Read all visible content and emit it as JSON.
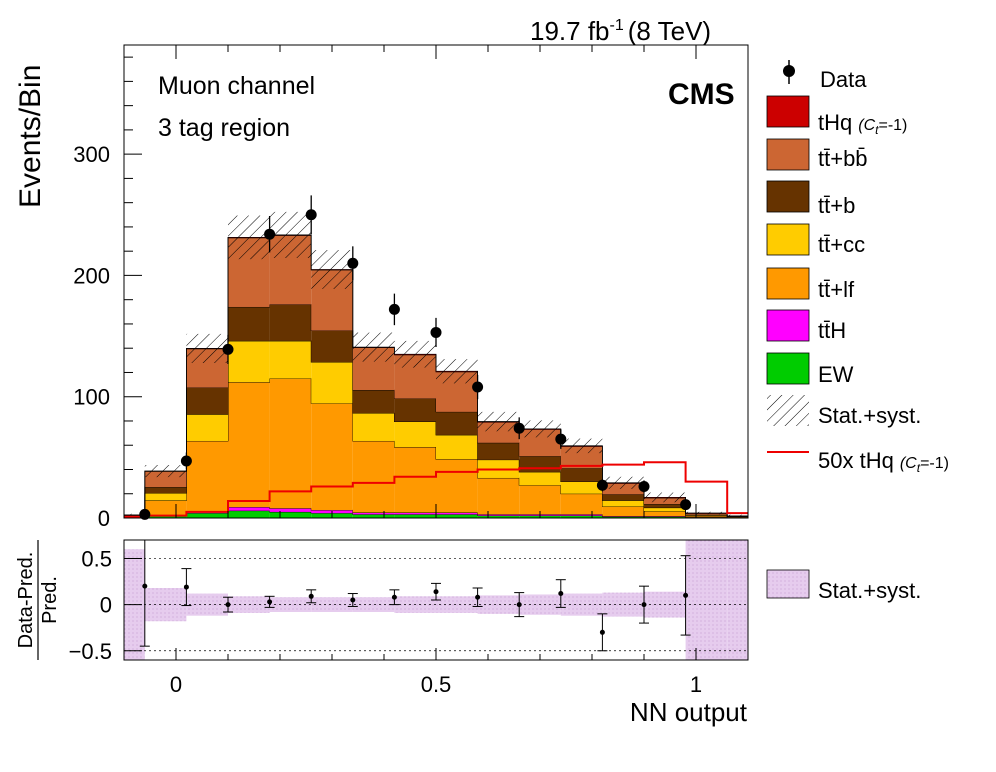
{
  "header": {
    "lumi_value": "19.7 fb",
    "lumi_exp": "-1",
    "energy": "(8 TeV)",
    "experiment": "CMS"
  },
  "annotations": {
    "channel": "Muon channel",
    "region": "3 tag region"
  },
  "legend": {
    "data": "Data",
    "thq_main": "tHq",
    "thq_ct": "(C",
    "thq_ct_sub": "t",
    "thq_ct_val": "=-1)",
    "ttbb": "tt̄+bb̄",
    "ttb": "tt̄+b",
    "ttcc": "tt̄+cc",
    "ttlf": "tt̄+lf",
    "tth": "tt̄H",
    "ew": "EW",
    "unc": "Stat.+syst.",
    "thq50_main": "50x tHq",
    "ratio_unc": "Stat.+syst."
  },
  "colors": {
    "thq": "#cc0000",
    "ttbb": "#cc6633",
    "ttb": "#663300",
    "ttcc": "#ffcc00",
    "ttlf": "#ff9900",
    "tth": "#ff00ff",
    "ew": "#00cc00",
    "signal_line": "#ee0000",
    "ratio_band": "#e6ccee"
  },
  "chart_data": {
    "type": "bar",
    "xlabel": "NN output",
    "ylabel": "Events/Bin",
    "ratio_ylabel_num": "Data-Pred.",
    "ratio_ylabel_den": "Pred.",
    "xlim": [
      -0.1,
      1.1
    ],
    "ylim": [
      0,
      390
    ],
    "ratio_ylim": [
      -0.6,
      0.7
    ],
    "x_ticks": [
      "0",
      "0.5",
      "1"
    ],
    "y_ticks": [
      "0",
      "100",
      "200",
      "300"
    ],
    "ratio_y_ticks": [
      "0.5",
      "0",
      "−0.5"
    ],
    "bin_edges": [
      -0.14,
      -0.06,
      0.02,
      0.1,
      0.18,
      0.26,
      0.34,
      0.42,
      0.5,
      0.58,
      0.66,
      0.74,
      0.82,
      0.9,
      0.98,
      1.06,
      1.14
    ],
    "stack": [
      {
        "key": "ew",
        "values": [
          0.5,
          2,
          4,
          6,
          5,
          4,
          3,
          3,
          3,
          2,
          2,
          2,
          1,
          1,
          0.5,
          0.3
        ]
      },
      {
        "key": "tth",
        "values": [
          0.1,
          0.5,
          1.5,
          3,
          3,
          2.5,
          1.5,
          1.5,
          1.5,
          1,
          1,
          1,
          0.5,
          0.5,
          0.2,
          0.1
        ]
      },
      {
        "key": "ttlf",
        "values": [
          1,
          12,
          58,
          103,
          107,
          88,
          59,
          54,
          44,
          30,
          24,
          17,
          8,
          4,
          1,
          0.5
        ]
      },
      {
        "key": "ttcc",
        "values": [
          0.3,
          6,
          22,
          34,
          31,
          34,
          23,
          21,
          20,
          15,
          11,
          10,
          5,
          3,
          0.5,
          0.2
        ]
      },
      {
        "key": "ttb",
        "values": [
          0.3,
          5,
          22,
          28,
          30,
          26,
          19,
          19,
          19,
          14,
          13,
          11,
          5,
          3,
          0.5,
          0.2
        ]
      },
      {
        "key": "ttbb",
        "values": [
          0.3,
          13,
          32,
          57,
          57,
          50,
          35,
          36,
          33,
          17,
          22,
          18,
          9,
          5,
          1,
          0.3
        ]
      },
      {
        "key": "thq",
        "values": [
          0,
          0.2,
          0.3,
          0.4,
          0.4,
          0.4,
          0.4,
          0.5,
          0.5,
          0.5,
          0.5,
          0.5,
          0.5,
          0.5,
          0.4,
          0.1
        ]
      }
    ],
    "unc_band": [
      1,
      5,
      12,
      18,
      19,
      16,
      12,
      11,
      10,
      8,
      7,
      6,
      5,
      4,
      1,
      1
    ],
    "signal_x50": [
      1,
      2,
      5,
      14,
      22,
      26,
      29,
      34,
      38,
      40,
      41,
      43,
      44,
      46,
      30,
      4
    ],
    "data_x": [
      -0.06,
      0.02,
      0.1,
      0.18,
      0.26,
      0.34,
      0.42,
      0.5,
      0.58,
      0.66,
      0.74,
      0.82,
      0.9,
      0.98
    ],
    "data_y": [
      3,
      47,
      139,
      234,
      250,
      210,
      172,
      153,
      108,
      74,
      65,
      27,
      26,
      11
    ],
    "data_err": [
      2,
      7,
      12,
      15,
      16,
      14,
      13,
      12,
      10,
      9,
      8,
      5,
      5,
      3
    ],
    "ratio_values": [
      0.2,
      0.19,
      0.0,
      0.03,
      0.09,
      0.05,
      0.08,
      0.14,
      0.08,
      0.0,
      0.12,
      -0.3,
      0.0,
      0.1
    ],
    "ratio_err": [
      0.65,
      0.2,
      0.08,
      0.06,
      0.07,
      0.07,
      0.08,
      0.09,
      0.1,
      0.13,
      0.15,
      0.2,
      0.2,
      0.43
    ],
    "ratio_band": [
      0.6,
      0.18,
      0.12,
      0.09,
      0.08,
      0.08,
      0.08,
      0.09,
      0.09,
      0.1,
      0.11,
      0.12,
      0.13,
      0.14,
      0.7,
      0.7
    ]
  }
}
